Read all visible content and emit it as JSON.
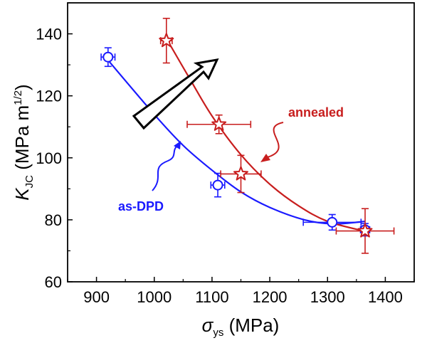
{
  "chart_data": {
    "type": "scatter",
    "xlabel": {
      "main": "σ",
      "sub": "ys",
      "unit": " (MPa)"
    },
    "ylabel": {
      "main": "K",
      "sub": "JC",
      "unit": " (MPa m",
      "sup": "1/2",
      "close": ")"
    },
    "xlim": [
      850,
      1450
    ],
    "ylim": [
      60,
      150
    ],
    "xticks": [
      900,
      1000,
      1100,
      1200,
      1300,
      1400
    ],
    "yticks": [
      60,
      80,
      100,
      120,
      140
    ],
    "grid": false,
    "series": [
      {
        "name": "as-DPD",
        "marker": "circle",
        "color": "#1a1aff",
        "points": [
          {
            "x": 920,
            "y": 132.5,
            "xerr": 12,
            "yerr": 3
          },
          {
            "x": 1110,
            "y": 91.2,
            "xerr": 12,
            "yerr": 3.8
          },
          {
            "x": 1308,
            "y": 79.2,
            "xerr": 50,
            "yerr": 2.5
          },
          {
            "x": 1365,
            "y": 76.8,
            "xerr": 8,
            "yerr": 2
          }
        ],
        "fit": [
          [
            920,
            131.5
          ],
          [
            1000,
            114
          ],
          [
            1050,
            104
          ],
          [
            1100,
            96
          ],
          [
            1150,
            89
          ],
          [
            1200,
            84
          ],
          [
            1260,
            80
          ],
          [
            1310,
            78.7
          ],
          [
            1365,
            79.5
          ]
        ]
      },
      {
        "name": "annealed",
        "marker": "star",
        "color": "#c81e1e",
        "points": [
          {
            "x": 1021,
            "y": 137.8,
            "xerr": 10,
            "yerr": 7.2
          },
          {
            "x": 1112,
            "y": 110.8,
            "xerr": 55,
            "yerr": 3
          },
          {
            "x": 1150,
            "y": 94.8,
            "xerr": 35,
            "yerr": 6
          },
          {
            "x": 1365,
            "y": 76.4,
            "xerr": 50,
            "yerr": 7.2
          }
        ],
        "fit": [
          [
            1021,
            138.5
          ],
          [
            1060,
            126
          ],
          [
            1100,
            113.5
          ],
          [
            1150,
            101
          ],
          [
            1200,
            91.5
          ],
          [
            1250,
            84.5
          ],
          [
            1300,
            79.5
          ],
          [
            1365,
            76.3
          ]
        ]
      }
    ],
    "annotations": [
      {
        "text": "annealed",
        "color": "#c81e1e"
      },
      {
        "text": "as-DPD",
        "color": "#1a1aff"
      }
    ]
  }
}
